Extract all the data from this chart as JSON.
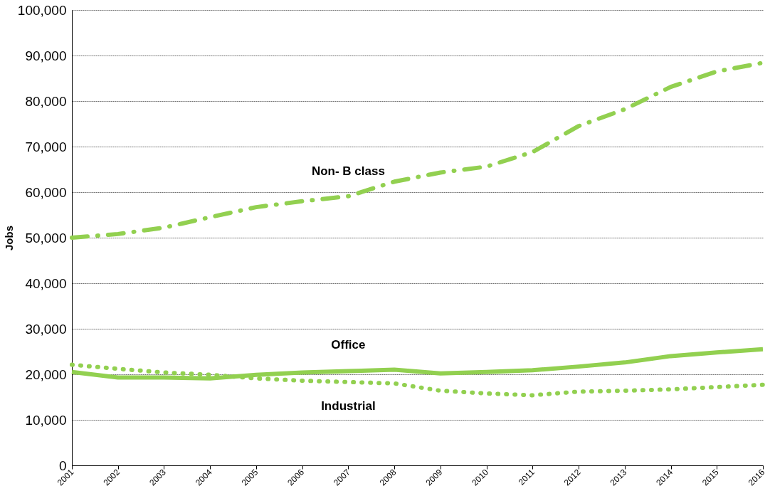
{
  "chart_data": {
    "type": "line",
    "ylabel": "Jobs",
    "categories": [
      "2001",
      "2002",
      "2003",
      "2004",
      "2005",
      "2006",
      "2007",
      "2008",
      "2009",
      "2010",
      "2011",
      "2012",
      "2013",
      "2014",
      "2015",
      "2016"
    ],
    "series": [
      {
        "name": "Non- B class",
        "color": "#92d050",
        "line_style": "dashdot",
        "values": [
          50000,
          50800,
          52200,
          54500,
          56700,
          58000,
          59100,
          62300,
          64300,
          65600,
          68800,
          74500,
          78200,
          83100,
          86500,
          88400
        ]
      },
      {
        "name": "Office",
        "color": "#92d050",
        "line_style": "solid",
        "values": [
          20500,
          19300,
          19300,
          19100,
          19900,
          20400,
          20700,
          21000,
          20200,
          20500,
          20900,
          21700,
          22600,
          24000,
          24800,
          25500
        ]
      },
      {
        "name": "Industrial",
        "color": "#92d050",
        "line_style": "dotted",
        "values": [
          22100,
          21200,
          20400,
          19900,
          19100,
          18600,
          18300,
          18000,
          16400,
          15800,
          15400,
          16200,
          16400,
          16700,
          17200,
          17700
        ]
      }
    ],
    "ylim": [
      0,
      100000
    ],
    "yticks": [
      0,
      {
        "value": 10000,
        "label": "10,000"
      },
      {
        "value": 20000,
        "label": "20,000"
      },
      {
        "value": 30000,
        "label": "30,000"
      },
      {
        "value": 40000,
        "label": "40,000"
      },
      {
        "value": 50000,
        "label": "50,000"
      },
      {
        "value": 60000,
        "label": "60,000"
      },
      {
        "value": 70000,
        "label": "70,000"
      },
      {
        "value": 80000,
        "label": "80,000"
      },
      {
        "value": 90000,
        "label": "90,000"
      },
      {
        "value": 100000,
        "label": "100,000"
      }
    ],
    "grid": "y",
    "marker": "none"
  }
}
